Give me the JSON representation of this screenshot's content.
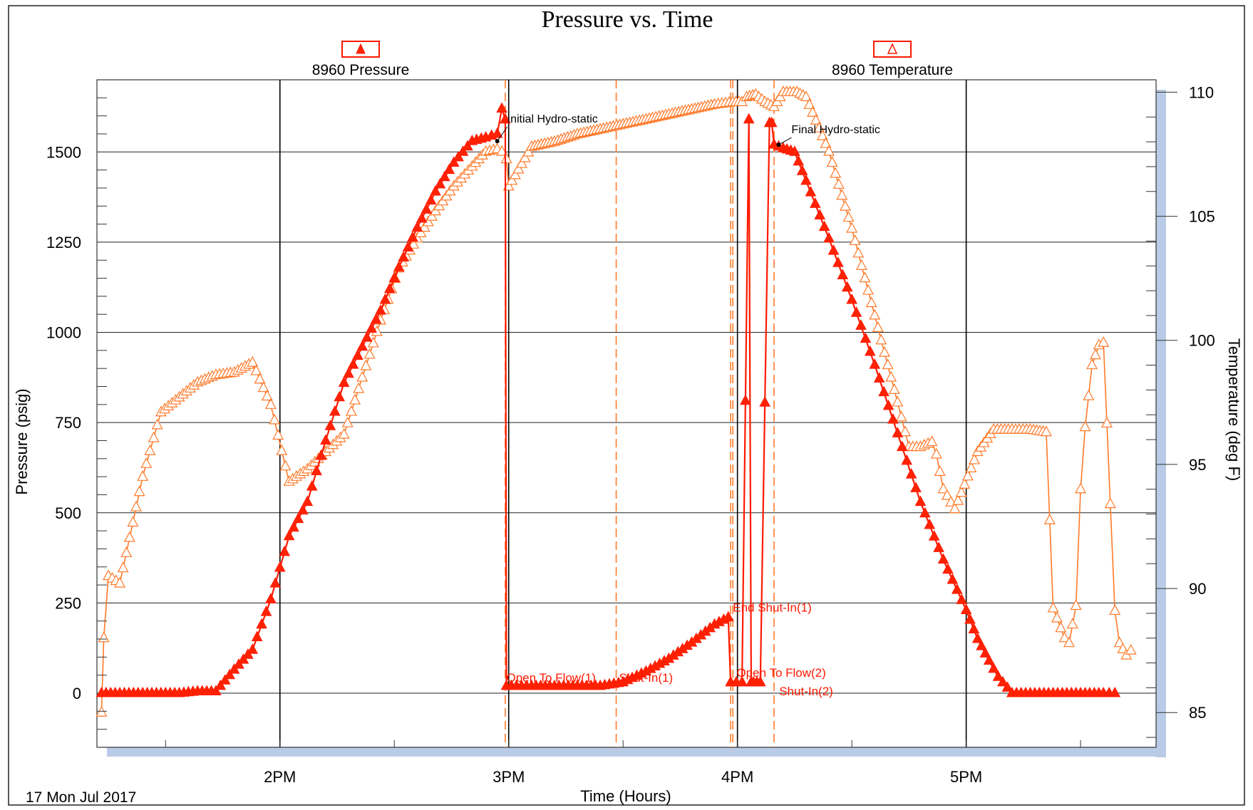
{
  "chart_data": {
    "type": "line",
    "title": "Pressure vs. Time",
    "xlabel": "Time (Hours)",
    "ylabel": "Pressure (psig)",
    "y2label": "Temperature (deg F)",
    "date_label": "17 Mon Jul 2017",
    "x_unit": "hours since midnight",
    "xlim": [
      13.2,
      17.83
    ],
    "ylim": [
      -150,
      1700
    ],
    "y2lim": [
      83.6,
      110.5
    ],
    "x_ticks": [
      {
        "value": 14,
        "label": "2PM"
      },
      {
        "value": 15,
        "label": "3PM"
      },
      {
        "value": 16,
        "label": "4PM"
      },
      {
        "value": 17,
        "label": "5PM"
      }
    ],
    "y_ticks": [
      0,
      250,
      500,
      750,
      1000,
      1250,
      1500
    ],
    "y2_ticks": [
      85,
      90,
      95,
      100,
      105,
      110
    ],
    "grid": true,
    "legend_position": "top",
    "colors": {
      "pressure": "#ff1a00",
      "pressure_marker_fill": "#ff2200",
      "temperature": "#ff7a2a",
      "event_line": "#ff7a2a",
      "annotation_red": "#ff1a00",
      "annotation_black": "#000000",
      "shadow": "#b9cbe6"
    },
    "series": [
      {
        "name": "8960 Pressure",
        "axis": "left",
        "marker": "filled-triangle",
        "x": [
          13.22,
          13.3,
          13.4,
          13.48,
          13.56,
          13.64,
          13.72,
          13.8,
          13.88,
          13.96,
          14.04,
          14.12,
          14.2,
          14.28,
          14.36,
          14.44,
          14.52,
          14.6,
          14.68,
          14.76,
          14.84,
          14.9,
          14.95,
          14.97,
          14.985,
          14.99,
          15.1,
          15.2,
          15.3,
          15.4,
          15.5,
          15.6,
          15.7,
          15.8,
          15.9,
          15.96,
          15.97,
          16.02,
          16.05,
          16.06,
          16.07,
          16.1,
          16.14,
          16.15,
          16.16,
          16.2,
          16.25,
          16.3,
          16.4,
          16.5,
          16.6,
          16.7,
          16.8,
          16.9,
          17.0,
          17.05,
          17.1,
          17.14,
          17.2,
          17.3,
          17.4,
          17.5,
          17.6,
          17.65
        ],
        "y": [
          0,
          0,
          0,
          0,
          0,
          5,
          5,
          65,
          120,
          260,
          435,
          530,
          700,
          860,
          960,
          1060,
          1180,
          1290,
          1390,
          1470,
          1530,
          1540,
          1550,
          1620,
          1590,
          20,
          20,
          20,
          20,
          20,
          30,
          60,
          95,
          140,
          190,
          210,
          30,
          30,
          1590,
          30,
          30,
          30,
          1580,
          1580,
          1520,
          1510,
          1500,
          1420,
          1260,
          1090,
          910,
          720,
          530,
          370,
          230,
          150,
          90,
          45,
          0,
          0,
          0,
          0,
          0,
          0
        ]
      },
      {
        "name": "8960 Temperature",
        "axis": "right",
        "marker": "open-triangle",
        "x": [
          13.22,
          13.23,
          13.25,
          13.3,
          13.4,
          13.48,
          13.56,
          13.64,
          13.72,
          13.8,
          13.88,
          13.96,
          14.04,
          14.12,
          14.2,
          14.28,
          14.36,
          14.44,
          14.52,
          14.6,
          14.68,
          14.76,
          14.84,
          14.9,
          14.95,
          14.97,
          14.99,
          15.0,
          15.1,
          15.2,
          15.3,
          15.4,
          15.5,
          15.6,
          15.7,
          15.8,
          15.9,
          15.98,
          16.02,
          16.04,
          16.08,
          16.12,
          16.16,
          16.2,
          16.26,
          16.3,
          16.4,
          16.5,
          16.6,
          16.7,
          16.75,
          16.8,
          16.85,
          16.87,
          16.9,
          16.95,
          17.05,
          17.12,
          17.2,
          17.28,
          17.35,
          17.38,
          17.43,
          17.45,
          17.48,
          17.5,
          17.52,
          17.55,
          17.58,
          17.6,
          17.63,
          17.65,
          17.67,
          17.7,
          17.72
        ],
        "y": [
          85,
          88,
          90.5,
          90.2,
          94.5,
          97.1,
          97.7,
          98.3,
          98.6,
          98.7,
          99.1,
          97.4,
          94.3,
          94.8,
          95.5,
          96.2,
          98.5,
          100.8,
          102.9,
          104.1,
          105.2,
          106.2,
          107.0,
          107.6,
          107.7,
          107.6,
          107.3,
          106.2,
          107.8,
          108.0,
          108.3,
          108.5,
          108.7,
          108.9,
          109.1,
          109.3,
          109.5,
          109.6,
          109.6,
          109.8,
          109.9,
          109.6,
          109.4,
          110,
          110,
          109.8,
          107.6,
          104.5,
          101.0,
          97.5,
          95.7,
          95.7,
          95.9,
          95.4,
          94.0,
          93.2,
          95.5,
          96.4,
          96.4,
          96.4,
          96.3,
          89.2,
          88.0,
          87.8,
          89.3,
          94.0,
          96.5,
          99.0,
          99.8,
          99.9,
          93.4,
          89.1,
          87.8,
          87.3,
          87.5
        ]
      }
    ],
    "event_lines": [
      14.985,
      15.47,
      15.97,
      15.98,
      16.16
    ],
    "annotations": [
      {
        "text": "Initial Hydro-static",
        "x": 14.95,
        "y": 1530,
        "color": "black"
      },
      {
        "text": "Final Hydro-static",
        "x": 16.18,
        "y": 1520,
        "color": "black"
      },
      {
        "text": "Open To Flow(1)",
        "x": 14.99,
        "y": 20,
        "color": "red"
      },
      {
        "text": "Shut-In(1)",
        "x": 15.47,
        "y": 20,
        "color": "red"
      },
      {
        "text": "End Shut-In(1)",
        "x": 15.98,
        "y": 210,
        "color": "red"
      },
      {
        "text": "Open To Flow(2)",
        "x": 15.99,
        "y": 30,
        "color": "red"
      },
      {
        "text": "Shut-In(2)",
        "x": 16.17,
        "y": 10,
        "color": "red"
      }
    ]
  }
}
